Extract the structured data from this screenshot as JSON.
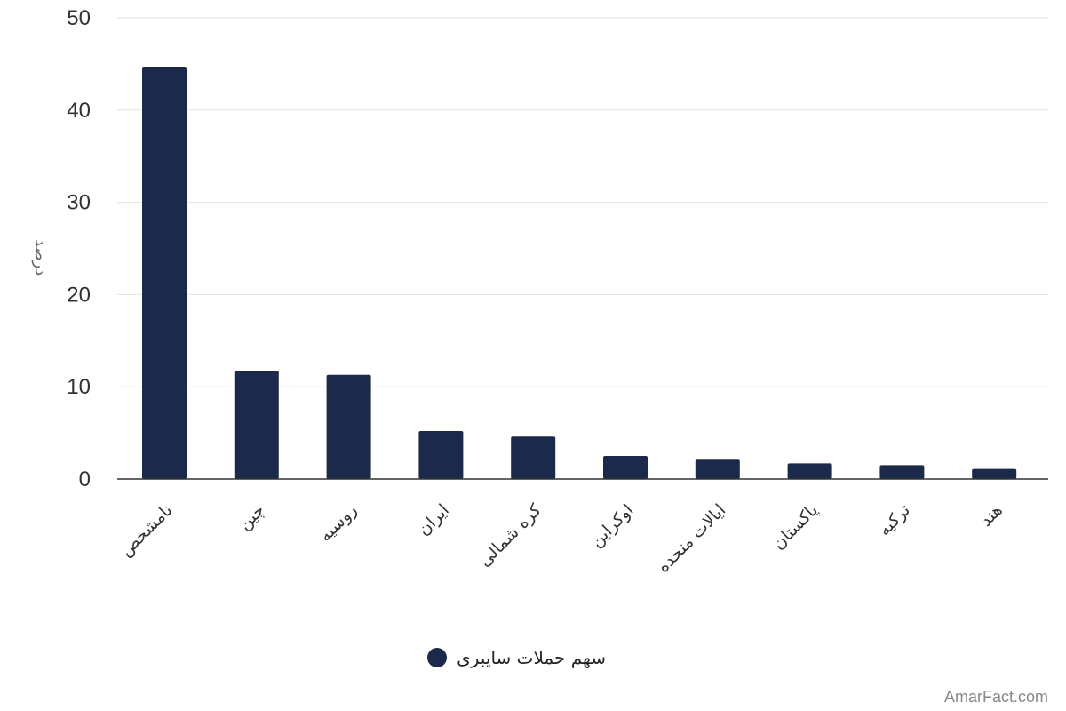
{
  "chart_data": {
    "type": "bar",
    "categories": [
      "نامشخص",
      "چین",
      "روسیه",
      "ایران",
      "کره شمالی",
      "اوکراین",
      "ایالات متحده",
      "پاکستان",
      "ترکیه",
      "هند"
    ],
    "series": [
      {
        "name": "سهم حملات سایبری",
        "values": [
          44.7,
          11.7,
          11.3,
          5.2,
          4.6,
          2.5,
          2.1,
          1.7,
          1.5,
          1.1
        ],
        "color": "#1b2a4a"
      }
    ],
    "ylabel": "درصد",
    "xlabel": "",
    "ylim": [
      0,
      50
    ],
    "yticks": [
      0,
      10,
      20,
      30,
      40,
      50
    ],
    "grid": true,
    "legend": "bottom-center"
  },
  "watermark": "AmarFact.com"
}
